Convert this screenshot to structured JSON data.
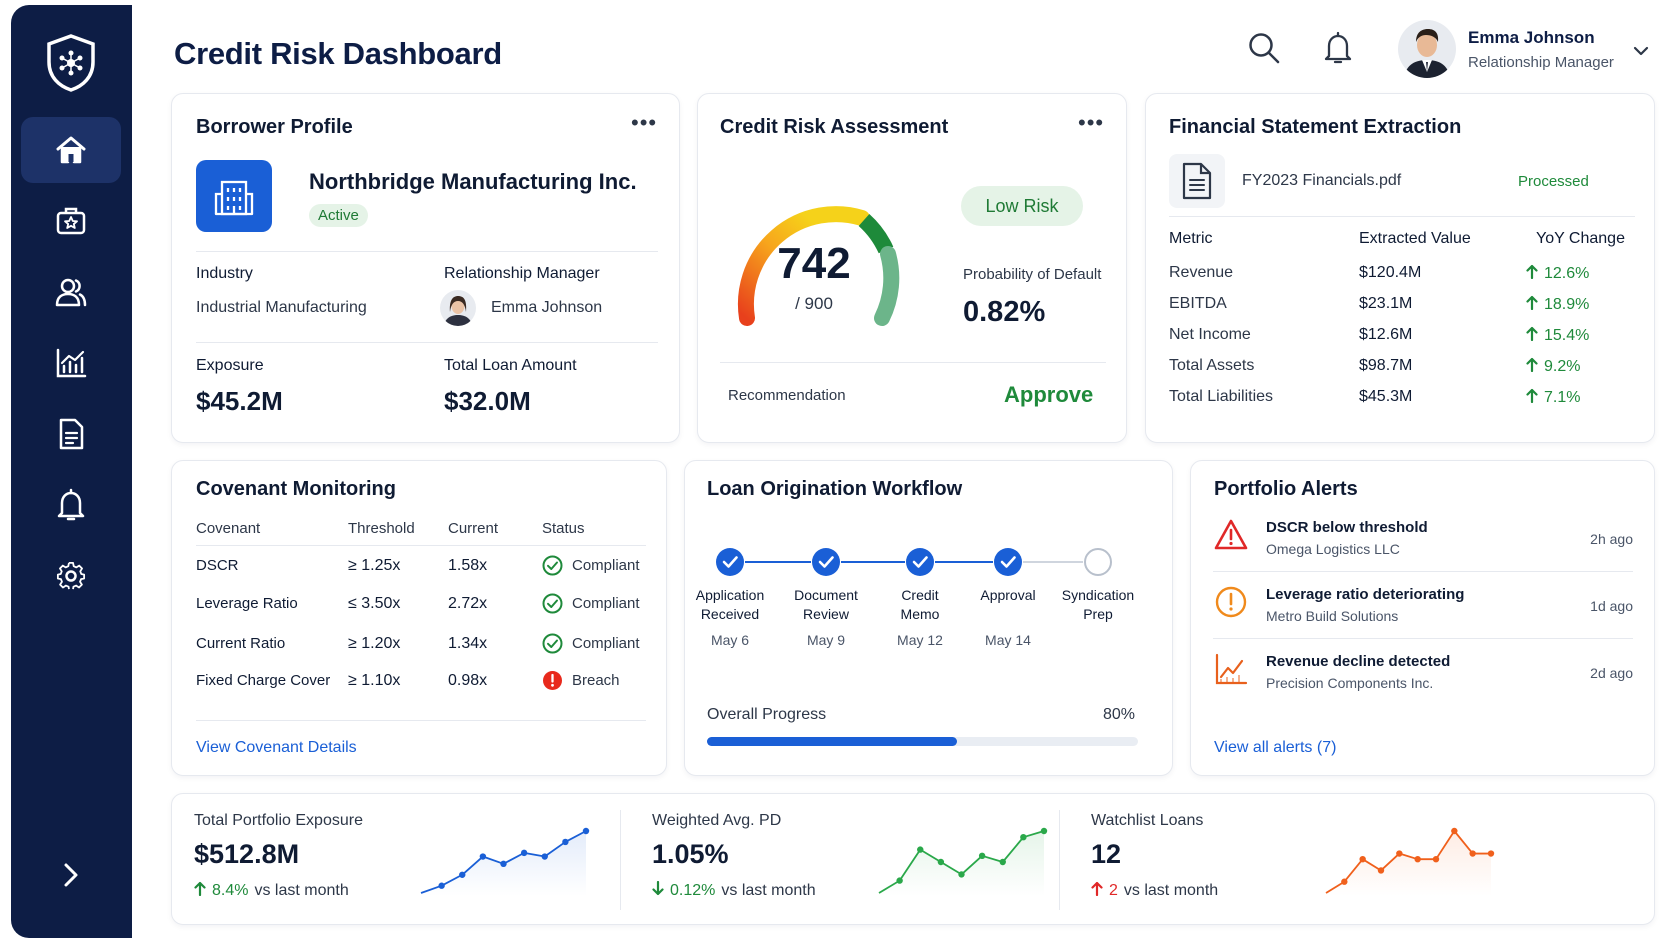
{
  "header": {
    "title": "Credit Risk Dashboard",
    "user_name": "Emma Johnson",
    "user_role": "Relationship Manager"
  },
  "sidebar": {
    "items": [
      {
        "icon": "home-icon",
        "active": true
      },
      {
        "icon": "briefcase-star-icon"
      },
      {
        "icon": "users-icon"
      },
      {
        "icon": "chart-icon"
      },
      {
        "icon": "document-icon"
      },
      {
        "icon": "bell-icon"
      },
      {
        "icon": "gear-icon"
      }
    ]
  },
  "borrower": {
    "title": "Borrower Profile",
    "name": "Northbridge Manufacturing Inc.",
    "status": "Active",
    "industry_label": "Industry",
    "industry": "Industrial Manufacturing",
    "rm_label": "Relationship Manager",
    "rm_name": "Emma Johnson",
    "exposure_label": "Exposure",
    "exposure": "$45.2M",
    "loan_label": "Total Loan Amount",
    "loan": "$32.0M"
  },
  "risk": {
    "title": "Credit Risk Assessment",
    "score": "742",
    "score_max": "/ 900",
    "score_value": 742,
    "score_range": [
      0,
      900
    ],
    "badge": "Low Risk",
    "pd_label": "Probability of Default",
    "pd": "0.82%",
    "rec_label": "Recommendation",
    "rec": "Approve"
  },
  "financials": {
    "title": "Financial Statement Extraction",
    "file": "FY2023 Financials.pdf",
    "file_status": "Processed",
    "headers": [
      "Metric",
      "Extracted Value",
      "YoY Change"
    ],
    "rows": [
      {
        "metric": "Revenue",
        "value": "$120.4M",
        "change": "12.6%"
      },
      {
        "metric": "EBITDA",
        "value": "$23.1M",
        "change": "18.9%"
      },
      {
        "metric": "Net Income",
        "value": "$12.6M",
        "change": "15.4%"
      },
      {
        "metric": "Total Assets",
        "value": "$98.7M",
        "change": "9.2%"
      },
      {
        "metric": "Total Liabilities",
        "value": "$45.3M",
        "change": "7.1%"
      }
    ]
  },
  "covenants": {
    "title": "Covenant Monitoring",
    "headers": [
      "Covenant",
      "Threshold",
      "Current",
      "Status"
    ],
    "rows": [
      {
        "name": "DSCR",
        "threshold": "≥ 1.25x",
        "current": "1.58x",
        "status": "Compliant"
      },
      {
        "name": "Leverage Ratio",
        "threshold": "≤ 3.50x",
        "current": "2.72x",
        "status": "Compliant"
      },
      {
        "name": "Current Ratio",
        "threshold": "≥ 1.20x",
        "current": "1.34x",
        "status": "Compliant"
      },
      {
        "name": "Fixed Charge Cover",
        "threshold": "≥ 1.10x",
        "current": "0.98x",
        "status": "Breach"
      }
    ],
    "link": "View Covenant Details"
  },
  "workflow": {
    "title": "Loan Origination Workflow",
    "steps": [
      {
        "line1": "Application",
        "line2": "Received",
        "date": "May 6",
        "done": true
      },
      {
        "line1": "Document",
        "line2": "Review",
        "date": "May 9",
        "done": true
      },
      {
        "line1": "Credit",
        "line2": "Memo",
        "date": "May 12",
        "done": true
      },
      {
        "line1": "Approval",
        "line2": "",
        "date": "May 14",
        "done": true
      },
      {
        "line1": "Syndication",
        "line2": "Prep",
        "date": "",
        "done": false
      }
    ],
    "progress_label": "Overall Progress",
    "progress_text": "80%",
    "progress": 0.8
  },
  "alerts": {
    "title": "Portfolio Alerts",
    "items": [
      {
        "title": "DSCR below threshold",
        "sub": "Omega Logistics LLC",
        "time": "2h ago",
        "icon": "warning-icon",
        "color": "#e02828"
      },
      {
        "title": "Leverage ratio deteriorating",
        "sub": "Metro Build Solutions",
        "time": "1d ago",
        "icon": "alert-circle-icon",
        "color": "#f08a1c"
      },
      {
        "title": "Revenue decline detected",
        "sub": "Precision Components Inc.",
        "time": "2d ago",
        "icon": "trend-icon",
        "color": "#e8601c"
      }
    ],
    "link": "View all alerts (7)"
  },
  "kpis": [
    {
      "label": "Total Portfolio Exposure",
      "value": "$512.8M",
      "change": "8.4%",
      "suffix": "vs last month",
      "dir": "up",
      "color": "#1a5fd6",
      "change_color": "#1f8a3b",
      "chart_data": {
        "type": "line",
        "values": [
          1,
          3,
          6,
          11,
          9,
          12,
          11,
          15,
          18
        ]
      }
    },
    {
      "label": "Weighted Avg. PD",
      "value": "1.05%",
      "change": "0.12%",
      "suffix": "vs last month",
      "dir": "down",
      "color": "#2aa84a",
      "change_color": "#1f8a3b",
      "chart_data": {
        "type": "line",
        "values": [
          2,
          4,
          9,
          7,
          5,
          8,
          7,
          11,
          12
        ]
      }
    },
    {
      "label": "Watchlist Loans",
      "value": "12",
      "change": "2",
      "suffix": "vs last month",
      "dir": "up",
      "color": "#f0601c",
      "change_color": "#e02828",
      "chart_data": {
        "type": "line",
        "values": [
          3,
          5,
          9,
          7,
          10,
          9,
          9,
          14,
          10,
          10
        ]
      }
    }
  ]
}
